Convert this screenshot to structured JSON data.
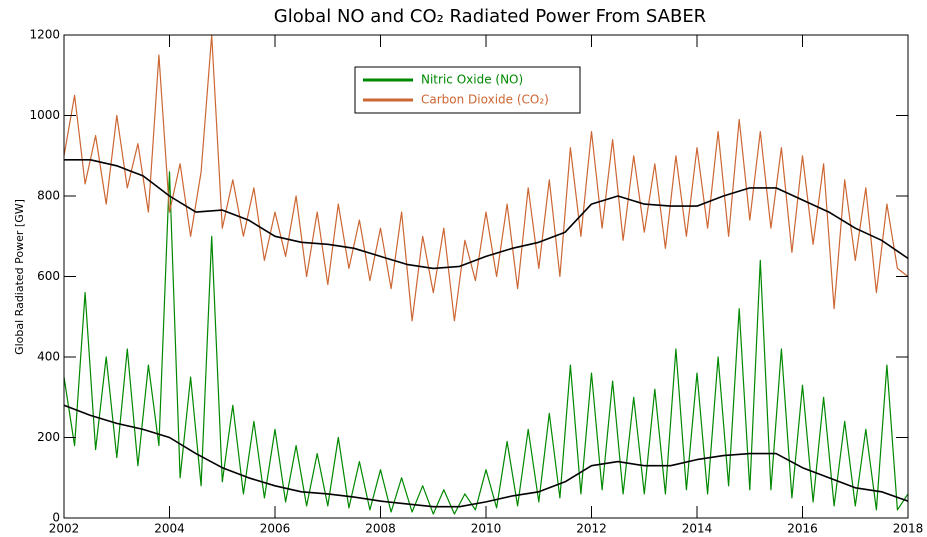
{
  "chart_data": {
    "type": "line",
    "title": "Global NO and CO₂ Radiated Power From SABER",
    "y_label": "Global Radiated Power [GW]",
    "xlim": [
      2002,
      2018
    ],
    "xticks": [
      2002,
      2004,
      2006,
      2008,
      2010,
      2012,
      2014,
      2016,
      2018
    ],
    "ylim": [
      0,
      1200
    ],
    "yticks": [
      0,
      200,
      400,
      600,
      800,
      1000,
      1200
    ],
    "legend": "top",
    "series": [
      {
        "name": "Nitric Oxide (NO)",
        "color": "#008800",
        "x": [
          2002,
          2002.2,
          2002.4,
          2002.6,
          2002.8,
          2003,
          2003.2,
          2003.4,
          2003.6,
          2003.8,
          2004,
          2004.2,
          2004.4,
          2004.6,
          2004.8,
          2005,
          2005.2,
          2005.4,
          2005.6,
          2005.8,
          2006,
          2006.2,
          2006.4,
          2006.6,
          2006.8,
          2007,
          2007.2,
          2007.4,
          2007.6,
          2007.8,
          2008,
          2008.2,
          2008.4,
          2008.6,
          2008.8,
          2009,
          2009.2,
          2009.4,
          2009.6,
          2009.8,
          2010,
          2010.2,
          2010.4,
          2010.6,
          2010.8,
          2011,
          2011.2,
          2011.4,
          2011.6,
          2011.8,
          2012,
          2012.2,
          2012.4,
          2012.6,
          2012.8,
          2013,
          2013.2,
          2013.4,
          2013.6,
          2013.8,
          2014,
          2014.2,
          2014.4,
          2014.6,
          2014.8,
          2015,
          2015.2,
          2015.4,
          2015.6,
          2015.8,
          2016,
          2016.2,
          2016.4,
          2016.6,
          2016.8,
          2017,
          2017.2,
          2017.4,
          2017.6,
          2017.8,
          2018
        ],
        "values": [
          350,
          180,
          560,
          170,
          400,
          150,
          420,
          130,
          380,
          180,
          860,
          100,
          350,
          80,
          700,
          90,
          280,
          60,
          240,
          50,
          220,
          40,
          180,
          30,
          160,
          30,
          200,
          25,
          140,
          20,
          120,
          15,
          100,
          15,
          80,
          10,
          70,
          10,
          60,
          20,
          120,
          25,
          190,
          30,
          220,
          40,
          260,
          50,
          380,
          60,
          360,
          70,
          340,
          60,
          300,
          60,
          320,
          60,
          420,
          70,
          360,
          60,
          400,
          80,
          520,
          70,
          640,
          70,
          420,
          50,
          330,
          40,
          300,
          30,
          240,
          30,
          220,
          20,
          380,
          20,
          60
        ]
      },
      {
        "name": "Carbon Dioxide (CO₂)",
        "color": "#cc6633",
        "x": [
          2002,
          2002.2,
          2002.4,
          2002.6,
          2002.8,
          2003,
          2003.2,
          2003.4,
          2003.6,
          2003.8,
          2004,
          2004.2,
          2004.4,
          2004.6,
          2004.8,
          2005,
          2005.2,
          2005.4,
          2005.6,
          2005.8,
          2006,
          2006.2,
          2006.4,
          2006.6,
          2006.8,
          2007,
          2007.2,
          2007.4,
          2007.6,
          2007.8,
          2008,
          2008.2,
          2008.4,
          2008.6,
          2008.8,
          2009,
          2009.2,
          2009.4,
          2009.6,
          2009.8,
          2010,
          2010.2,
          2010.4,
          2010.6,
          2010.8,
          2011,
          2011.2,
          2011.4,
          2011.6,
          2011.8,
          2012,
          2012.2,
          2012.4,
          2012.6,
          2012.8,
          2013,
          2013.2,
          2013.4,
          2013.6,
          2013.8,
          2014,
          2014.2,
          2014.4,
          2014.6,
          2014.8,
          2015,
          2015.2,
          2015.4,
          2015.6,
          2015.8,
          2016,
          2016.2,
          2016.4,
          2016.6,
          2016.8,
          2017,
          2017.2,
          2017.4,
          2017.6,
          2017.8,
          2018
        ],
        "values": [
          900,
          1050,
          830,
          950,
          780,
          1000,
          820,
          930,
          760,
          1150,
          760,
          880,
          700,
          860,
          1200,
          720,
          840,
          700,
          820,
          640,
          760,
          650,
          800,
          600,
          760,
          580,
          780,
          620,
          740,
          590,
          720,
          570,
          760,
          490,
          700,
          560,
          720,
          490,
          690,
          590,
          760,
          600,
          780,
          570,
          820,
          620,
          840,
          600,
          920,
          700,
          960,
          720,
          940,
          690,
          900,
          710,
          880,
          670,
          900,
          700,
          920,
          720,
          960,
          700,
          990,
          740,
          960,
          720,
          920,
          660,
          900,
          680,
          880,
          520,
          840,
          640,
          820,
          560,
          780,
          620,
          600
        ]
      },
      {
        "color": "#000000",
        "x": [
          2002,
          2002.5,
          2003,
          2003.5,
          2004,
          2004.5,
          2005,
          2005.5,
          2006,
          2006.5,
          2007,
          2007.5,
          2008,
          2008.5,
          2009,
          2009.5,
          2010,
          2010.5,
          2011,
          2011.5,
          2012,
          2012.5,
          2013,
          2013.5,
          2014,
          2014.5,
          2015,
          2015.5,
          2016,
          2016.5,
          2017,
          2017.5,
          2018
        ],
        "values": [
          280,
          255,
          235,
          220,
          200,
          160,
          125,
          100,
          80,
          65,
          60,
          52,
          42,
          35,
          28,
          28,
          40,
          55,
          65,
          90,
          130,
          140,
          130,
          130,
          145,
          155,
          160,
          160,
          125,
          100,
          75,
          65,
          42
        ]
      },
      {
        "color": "#000000",
        "x": [
          2002,
          2002.5,
          2003,
          2003.5,
          2004,
          2004.5,
          2005,
          2005.5,
          2006,
          2006.5,
          2007,
          2007.5,
          2008,
          2008.5,
          2009,
          2009.5,
          2010,
          2010.5,
          2011,
          2011.5,
          2012,
          2012.5,
          2013,
          2013.5,
          2014,
          2014.5,
          2015,
          2015.5,
          2016,
          2016.5,
          2017,
          2017.5,
          2018
        ],
        "values": [
          890,
          890,
          875,
          850,
          800,
          760,
          765,
          740,
          700,
          685,
          680,
          670,
          650,
          630,
          620,
          625,
          650,
          670,
          685,
          710,
          780,
          800,
          780,
          775,
          775,
          800,
          820,
          820,
          790,
          760,
          720,
          690,
          645
        ]
      }
    ]
  }
}
